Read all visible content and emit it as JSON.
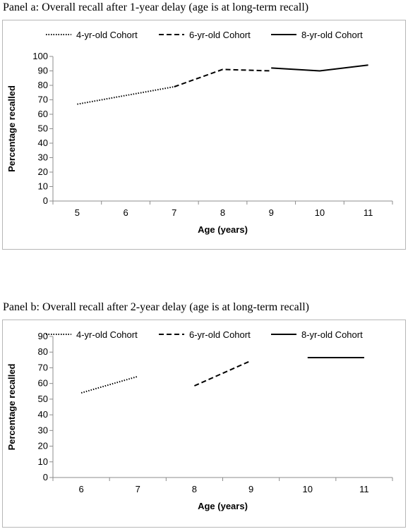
{
  "panels": [
    {
      "title": "Panel a: Overall recall after 1-year delay (age is at long-term recall)"
    },
    {
      "title": "Panel b: Overall recall after 2-year delay (age is at long-term recall)"
    }
  ],
  "chart_data": [
    {
      "type": "line",
      "title": "Panel a: Overall recall after 1-year delay (age is at long-term recall)",
      "xlabel": "Age (years)",
      "ylabel": "Percentage recalled",
      "categories": [
        "5",
        "6",
        "7",
        "8",
        "9",
        "10",
        "11"
      ],
      "ylim": [
        0,
        100
      ],
      "yticks": [
        0,
        10,
        20,
        30,
        40,
        50,
        60,
        70,
        80,
        90,
        100
      ],
      "legend_position": "top",
      "grid": false,
      "series": [
        {
          "name": "4-yr-old Cohort",
          "style": "dotted",
          "color": "#000000",
          "points": [
            [
              "5",
              67
            ],
            [
              "7",
              79
            ]
          ]
        },
        {
          "name": "6-yr-old Cohort",
          "style": "dashed",
          "color": "#000000",
          "points": [
            [
              "7",
              79
            ],
            [
              "8",
              91
            ],
            [
              "9",
              90
            ]
          ]
        },
        {
          "name": "8-yr-old Cohort",
          "style": "solid",
          "color": "#000000",
          "points": [
            [
              "9",
              92
            ],
            [
              "10",
              90
            ],
            [
              "11",
              94
            ]
          ]
        }
      ]
    },
    {
      "type": "line",
      "title": "Panel b: Overall recall after 2-year delay (age is at long-term recall)",
      "xlabel": "Age (years)",
      "ylabel": "Percentage recalled",
      "categories": [
        "6",
        "7",
        "8",
        "9",
        "10",
        "11"
      ],
      "ylim": [
        0,
        90
      ],
      "yticks": [
        0,
        10,
        20,
        30,
        40,
        50,
        60,
        70,
        80,
        90
      ],
      "legend_position": "top",
      "grid": false,
      "series": [
        {
          "name": "4-yr-old Cohort",
          "style": "dotted",
          "color": "#000000",
          "points": [
            [
              "6",
              54
            ],
            [
              "7",
              64.5
            ]
          ]
        },
        {
          "name": "6-yr-old Cohort",
          "style": "dashed",
          "color": "#000000",
          "points": [
            [
              "8",
              58.5
            ],
            [
              "9",
              74.5
            ]
          ]
        },
        {
          "name": "8-yr-old Cohort",
          "style": "solid",
          "color": "#000000",
          "points": [
            [
              "10",
              76.5
            ],
            [
              "11",
              76.5
            ]
          ]
        }
      ]
    }
  ]
}
